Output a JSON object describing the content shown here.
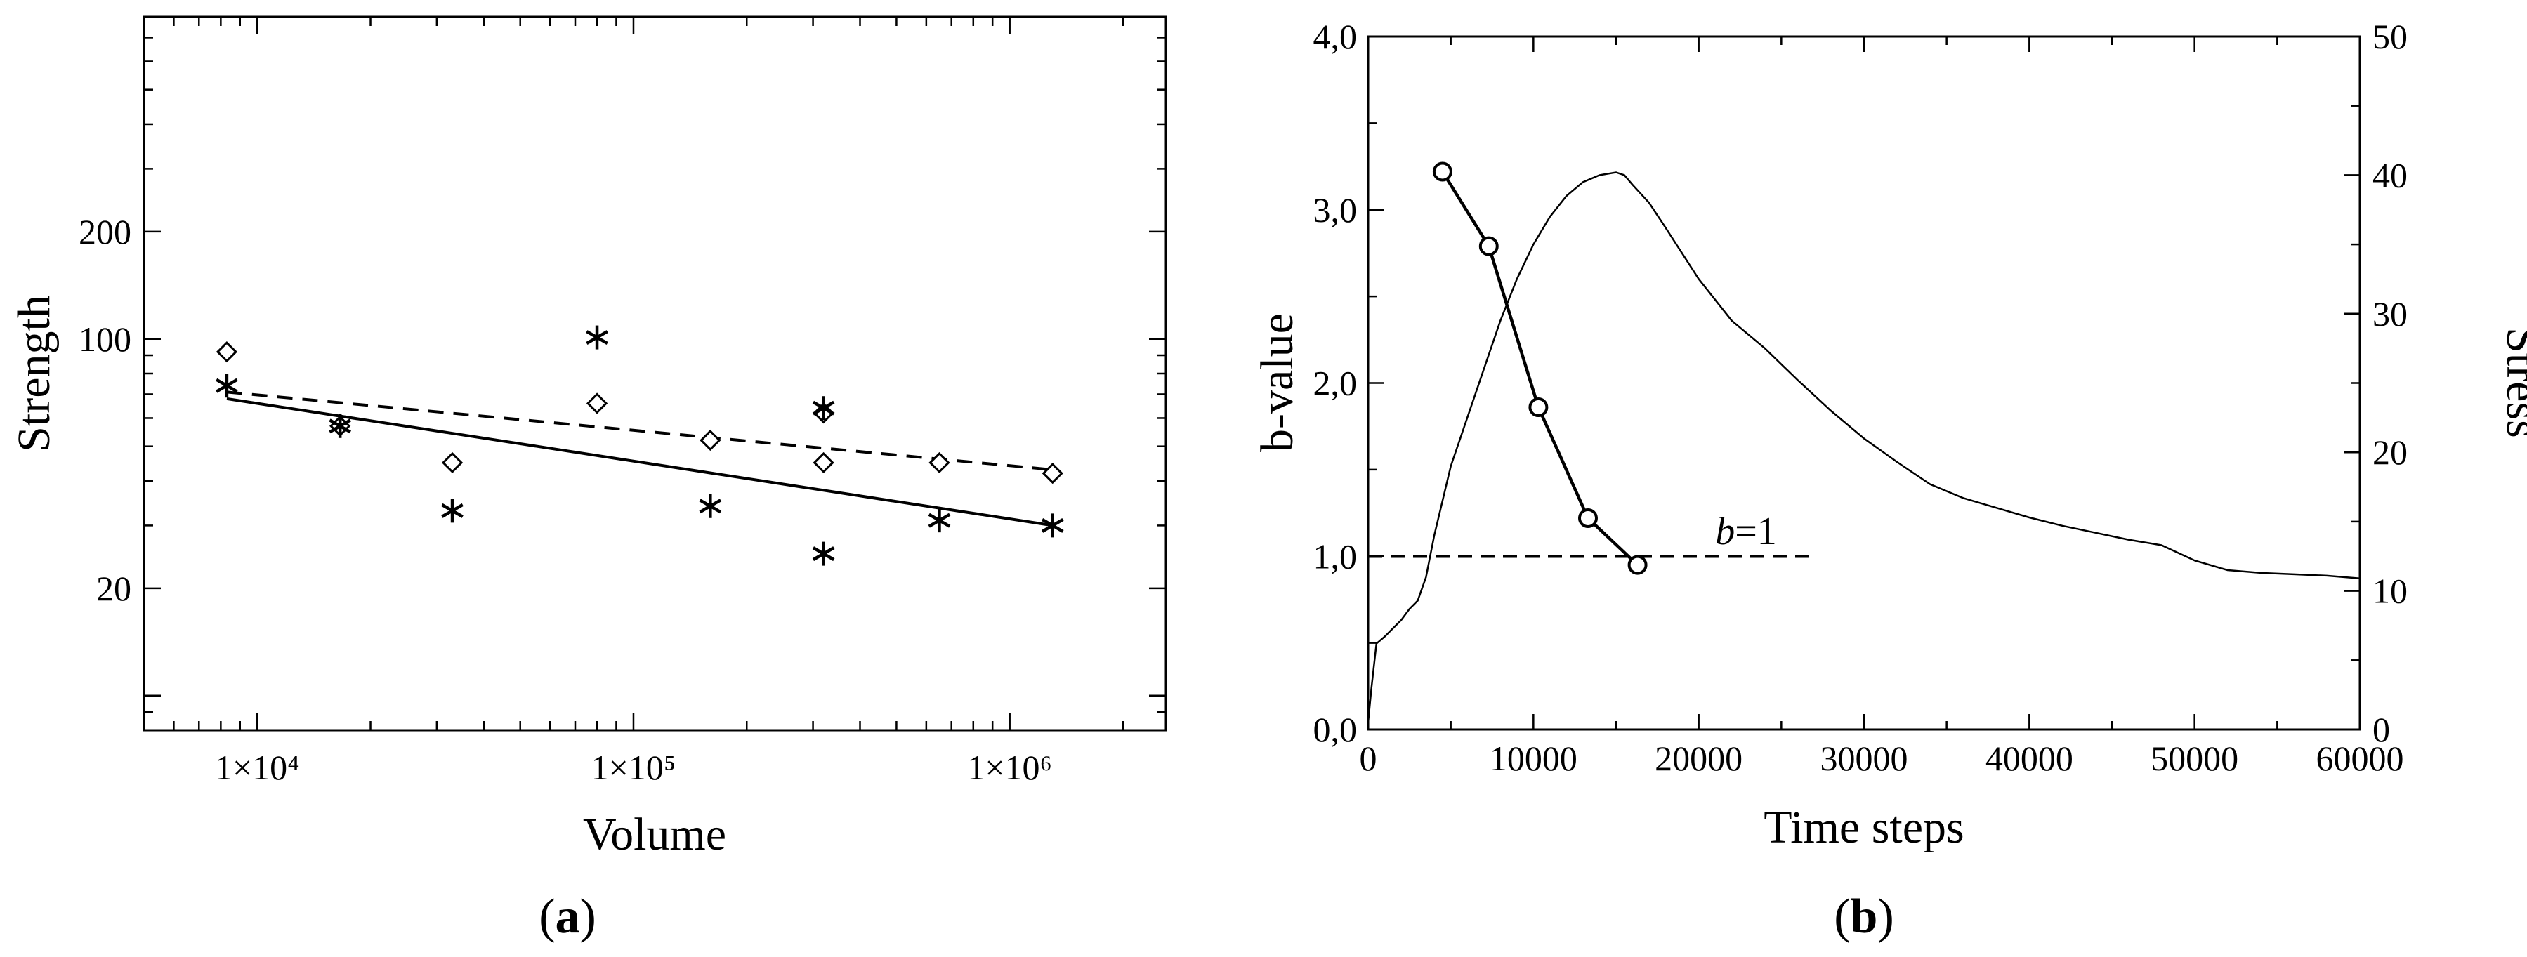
{
  "chart_data": [
    {
      "id": "a",
      "type": "scatter",
      "panel_label": "a",
      "xlabel": "Volume",
      "ylabel": "Strength",
      "xscale": "log",
      "yscale": "log",
      "xlim": [
        5000,
        2600000
      ],
      "ylim": [
        8,
        800
      ],
      "x_ticklabels": [
        {
          "value": 10000,
          "label": "1×10⁴"
        },
        {
          "value": 100000,
          "label": "1×10⁵"
        },
        {
          "value": 1000000,
          "label": "1×10⁶"
        }
      ],
      "y_ticklabels": [
        {
          "value": 20,
          "label": "20"
        },
        {
          "value": 100,
          "label": "100"
        },
        {
          "value": 200,
          "label": "200"
        }
      ],
      "series": [
        {
          "name": "diamonds",
          "marker": "diamond",
          "points": [
            {
              "x": 8300,
              "y": 92
            },
            {
              "x": 16600,
              "y": 57
            },
            {
              "x": 33000,
              "y": 45
            },
            {
              "x": 80000,
              "y": 66
            },
            {
              "x": 160000,
              "y": 52
            },
            {
              "x": 320000,
              "y": 45
            },
            {
              "x": 320000,
              "y": 62
            },
            {
              "x": 650000,
              "y": 45
            },
            {
              "x": 1300000,
              "y": 42
            }
          ]
        },
        {
          "name": "stars",
          "marker": "star",
          "points": [
            {
              "x": 8300,
              "y": 74
            },
            {
              "x": 16600,
              "y": 57
            },
            {
              "x": 33000,
              "y": 33
            },
            {
              "x": 80000,
              "y": 101
            },
            {
              "x": 160000,
              "y": 34
            },
            {
              "x": 320000,
              "y": 64
            },
            {
              "x": 320000,
              "y": 25
            },
            {
              "x": 650000,
              "y": 31
            },
            {
              "x": 1300000,
              "y": 30
            }
          ]
        },
        {
          "name": "dashed-fit",
          "style": "dashed",
          "points": [
            {
              "x": 8300,
              "y": 71
            },
            {
              "x": 1300000,
              "y": 43
            }
          ]
        },
        {
          "name": "solid-fit",
          "style": "solid",
          "points": [
            {
              "x": 8300,
              "y": 68
            },
            {
              "x": 1300000,
              "y": 30
            }
          ]
        }
      ]
    },
    {
      "id": "b",
      "type": "line",
      "panel_label": "b",
      "xlabel": "Time steps",
      "ylabel": "b-value",
      "y2label": "Stress",
      "xlim": [
        0,
        60000
      ],
      "ylim": [
        0,
        4
      ],
      "y2lim": [
        0,
        50
      ],
      "x_ticklabels": [
        "0",
        "10000",
        "20000",
        "30000",
        "40000",
        "50000",
        "60000"
      ],
      "y_ticklabels": [
        "0,0",
        "1,0",
        "2,0",
        "3,0",
        "4,0"
      ],
      "y2_ticklabels": [
        "0",
        "10",
        "20",
        "30",
        "40",
        "50"
      ],
      "annotation": {
        "text_italic": "b",
        "text": "=1",
        "x": 21000,
        "y": 1.07
      },
      "series": [
        {
          "name": "b-value",
          "axis": "left",
          "marker": "circle",
          "x": [
            4500,
            7300,
            10300,
            13300,
            16300
          ],
          "y": [
            3.22,
            2.79,
            1.86,
            1.22,
            0.95
          ]
        },
        {
          "name": "b=1",
          "axis": "left",
          "style": "dashed",
          "x": [
            0,
            27000
          ],
          "y": [
            1.0,
            1.0
          ]
        },
        {
          "name": "stress",
          "axis": "right",
          "x": [
            0,
            200,
            500,
            1000,
            1500,
            2000,
            2500,
            3000,
            3500,
            4000,
            5000,
            6000,
            7000,
            8000,
            9000,
            10000,
            11000,
            12000,
            13000,
            14000,
            15000,
            15500,
            16000,
            17000,
            18000,
            20000,
            22000,
            24000,
            26000,
            28000,
            30000,
            32000,
            34000,
            36000,
            38000,
            40000,
            42000,
            44000,
            46000,
            48000,
            50000,
            52000,
            54000,
            56000,
            58000,
            60000
          ],
          "y": [
            0.5,
            3,
            6.2,
            6.7,
            7.3,
            7.9,
            8.7,
            9.3,
            11,
            14,
            19,
            22.5,
            26,
            29.5,
            32.5,
            35,
            37,
            38.5,
            39.5,
            40,
            40.2,
            40,
            39.3,
            38,
            36.2,
            32.5,
            29.5,
            27.5,
            25.2,
            23,
            21,
            19.3,
            17.7,
            16.7,
            16,
            15.3,
            14.7,
            14.2,
            13.7,
            13.3,
            12.2,
            11.5,
            11.3,
            11.2,
            11.1,
            10.9
          ]
        }
      ]
    }
  ]
}
